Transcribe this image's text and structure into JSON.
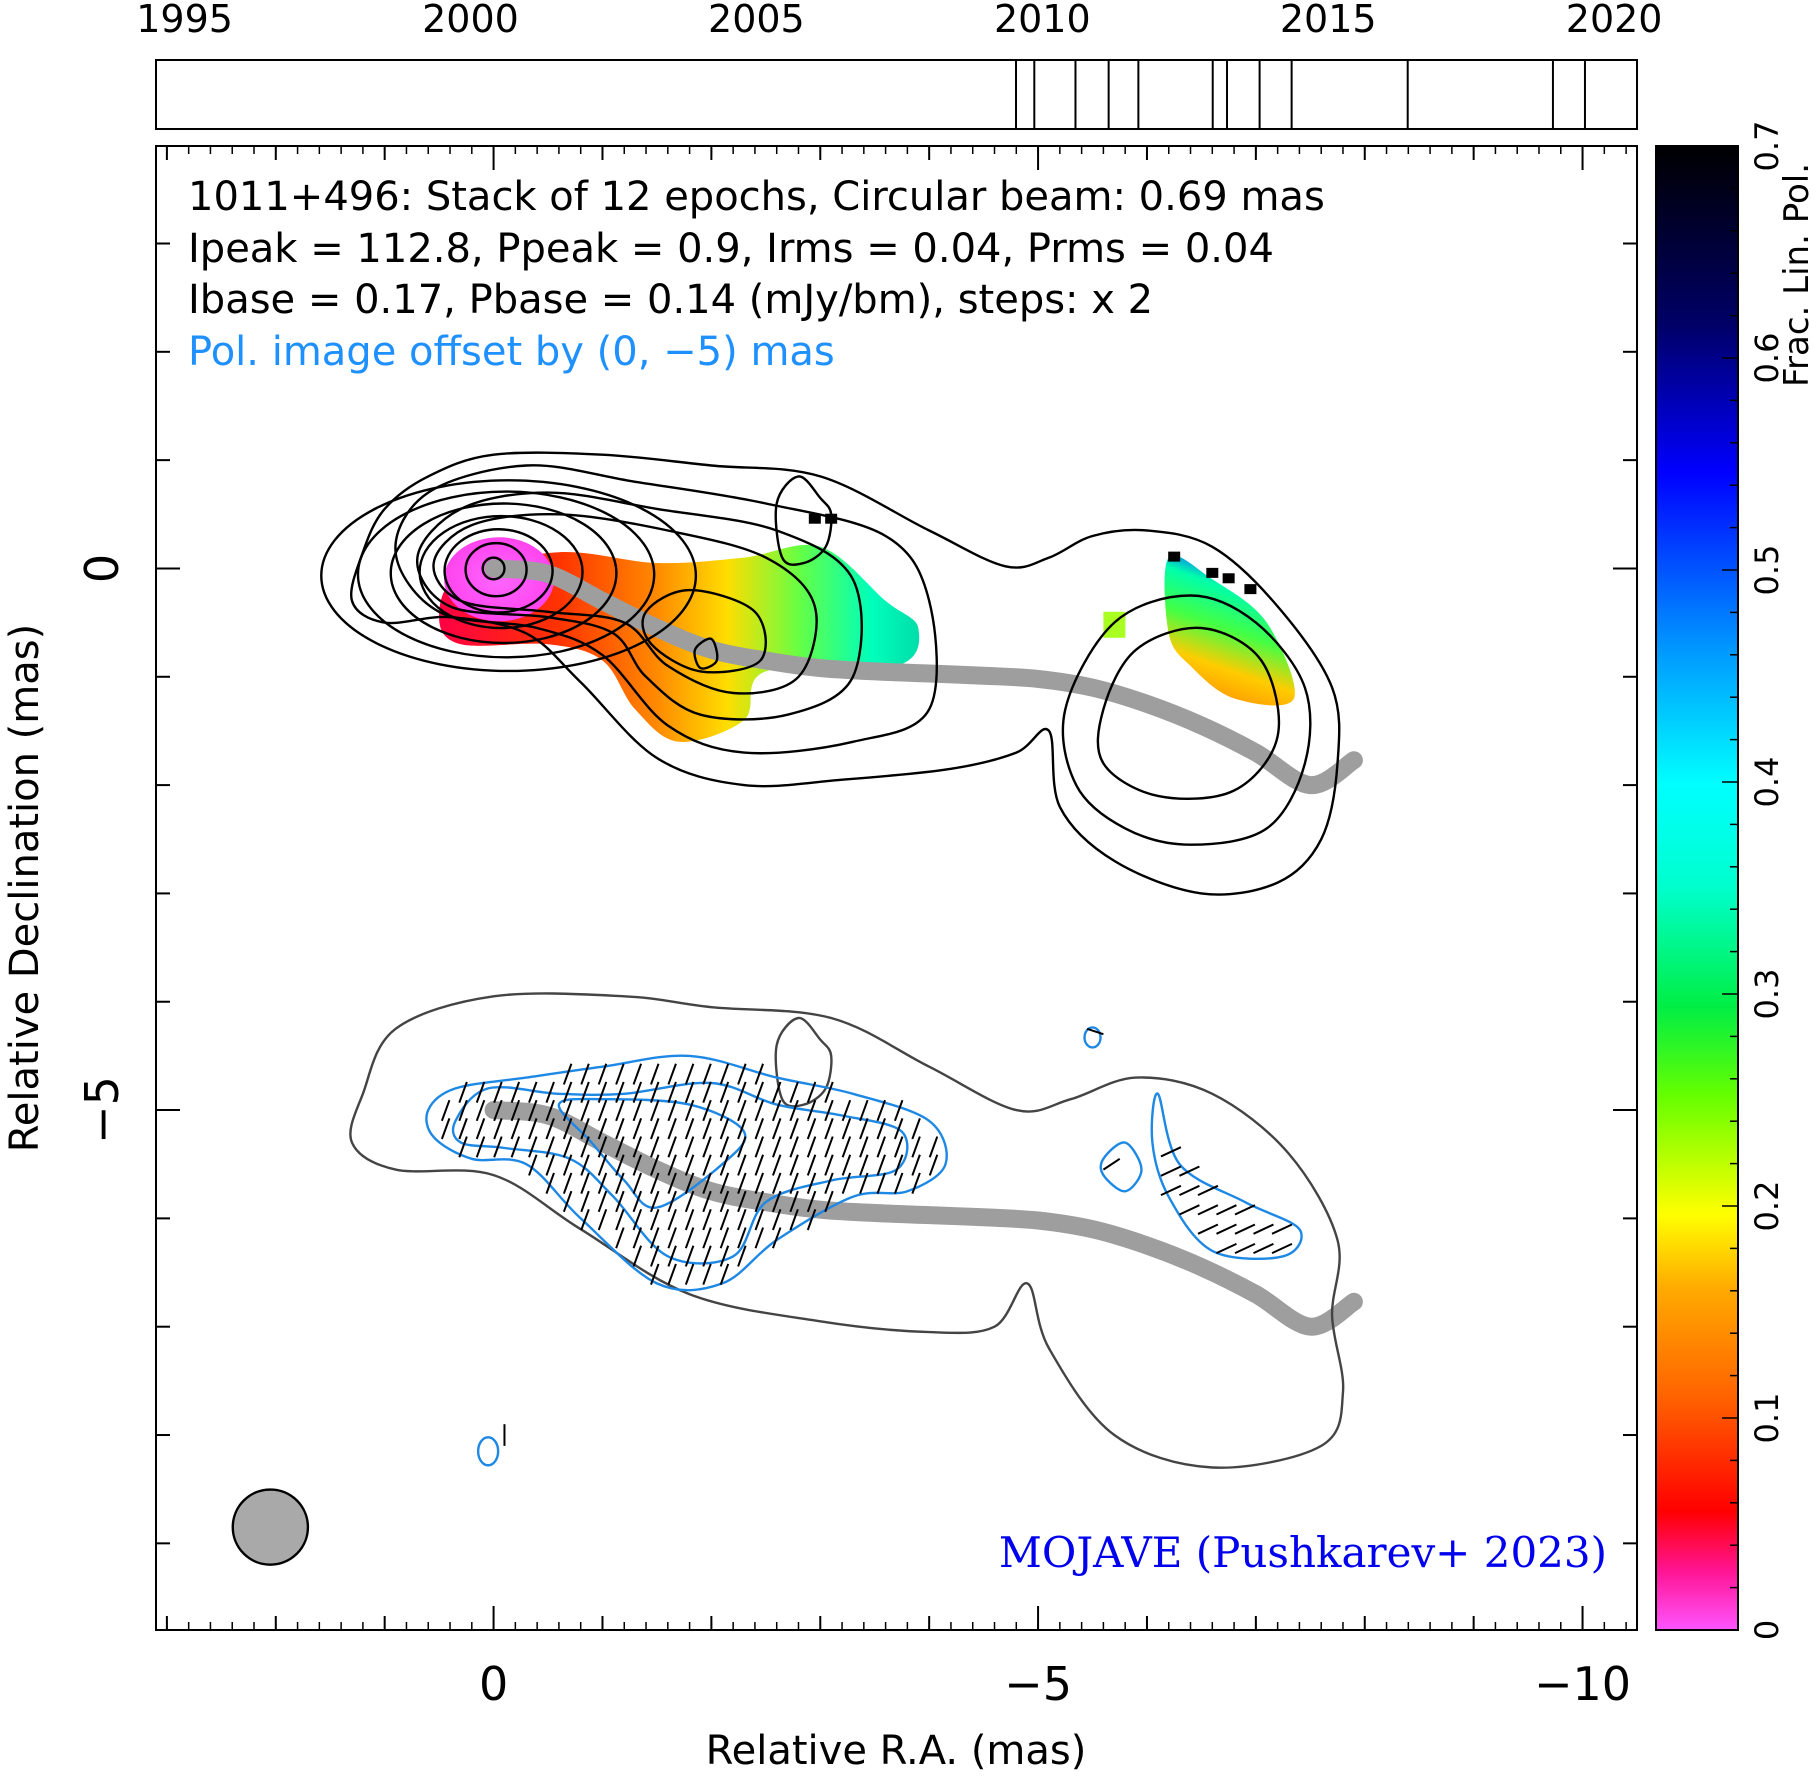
{
  "chart_data": {
    "type": "contour map",
    "source": "1011+496",
    "annotation_lines": [
      "1011+496: Stack of 12 epochs, Circular beam: 0.69 mas",
      "Ipeak = 112.8, Ppeak = 0.9, Irms = 0.04, Prms = 0.04",
      "Ibase = 0.17, Pbase = 0.14 (mJy/bm), steps: x 2"
    ],
    "offset_note": "Pol. image offset by (0, −5) mas",
    "credit": "MOJAVE (Pushkarev+ 2023)",
    "xlabel": "Relative R.A. (mas)",
    "ylabel": "Relative Declination (mas)",
    "xlim": [
      3.1,
      -10.5
    ],
    "ylim": [
      -9.8,
      3.9
    ],
    "x_ticks": [
      0,
      -5,
      -10
    ],
    "x_tick_labels": [
      "0",
      "−5",
      "−10"
    ],
    "y_ticks": [
      0,
      -5
    ],
    "y_tick_labels": [
      "0",
      "−5"
    ],
    "timeline": {
      "range": [
        1994.5,
        2020.4
      ],
      "tick_labels": [
        "1995",
        "2000",
        "2005",
        "2010",
        "2015",
        "2020"
      ],
      "tick_values": [
        1995,
        2000,
        2005,
        2010,
        2015,
        2020
      ],
      "epochs": [
        2009.54,
        2009.86,
        2010.58,
        2011.16,
        2011.68,
        2012.98,
        2013.23,
        2013.8,
        2014.36,
        2016.39,
        2018.93,
        2019.49
      ]
    },
    "colorbar": {
      "label": "Frac. Lin. Pol.",
      "range": [
        0,
        0.7
      ],
      "tick_labels": [
        "0",
        "0.1",
        "0.2",
        "0.3",
        "0.4",
        "0.5",
        "0.6",
        "0.7"
      ],
      "tick_values": [
        0,
        0.1,
        0.2,
        0.3,
        0.4,
        0.5,
        0.6,
        0.7
      ]
    },
    "beam": {
      "diameter_mas": 0.69,
      "x": 2.05,
      "y": -8.85
    },
    "ridge_line": [
      [
        0,
        0
      ],
      [
        -0.5,
        -0.05
      ],
      [
        -1,
        -0.3
      ],
      [
        -1.5,
        -0.55
      ],
      [
        -2,
        -0.75
      ],
      [
        -2.5,
        -0.85
      ],
      [
        -3,
        -0.92
      ],
      [
        -3.5,
        -0.95
      ],
      [
        -4,
        -0.97
      ],
      [
        -4.5,
        -0.99
      ],
      [
        -5,
        -1.02
      ],
      [
        -5.5,
        -1.1
      ],
      [
        -6,
        -1.25
      ],
      [
        -6.5,
        -1.45
      ],
      [
        -7,
        -1.7
      ],
      [
        -7.5,
        -1.95
      ],
      [
        -7.9,
        -1.72
      ]
    ],
    "total_intensity_contours": [
      [
        [
          -3,
          0.65
        ],
        [
          -2.8,
          0.85
        ],
        [
          -2.6,
          0.6
        ],
        [
          -2.65,
          0.1
        ],
        [
          -2.85,
          0.05
        ],
        [
          -3.05,
          0.2
        ],
        [
          -3.1,
          0.5
        ]
      ],
      [
        [
          1.2,
          0.15
        ],
        [
          1,
          0.55
        ],
        [
          0.6,
          0.85
        ],
        [
          0,
          1.05
        ],
        [
          -1,
          1.05
        ],
        [
          -2,
          0.95
        ],
        [
          -3,
          0.85
        ],
        [
          -4,
          0.35
        ],
        [
          -4.7,
          0.02
        ],
        [
          -5.1,
          0.1
        ],
        [
          -5.5,
          0.3
        ],
        [
          -6,
          0.35
        ],
        [
          -6.6,
          0.2
        ],
        [
          -7.2,
          -0.35
        ],
        [
          -7.7,
          -1.1
        ],
        [
          -7.75,
          -1.8
        ],
        [
          -7.6,
          -2.5
        ],
        [
          -7.2,
          -2.9
        ],
        [
          -6.5,
          -3.0
        ],
        [
          -5.7,
          -2.7
        ],
        [
          -5.2,
          -2.2
        ],
        [
          -5.1,
          -1.5
        ],
        [
          -4.8,
          -1.7
        ],
        [
          -4.2,
          -1.85
        ],
        [
          -3.2,
          -1.95
        ],
        [
          -2.3,
          -2.0
        ],
        [
          -1.5,
          -1.75
        ],
        [
          -0.8,
          -1.05
        ],
        [
          -0.3,
          -0.6
        ],
        [
          0.4,
          -0.45
        ],
        [
          1.0,
          -0.5
        ],
        [
          1.3,
          -0.3
        ]
      ],
      [
        [
          -5.25,
          -1.3
        ],
        [
          -5.7,
          -0.5
        ],
        [
          -6.4,
          -0.25
        ],
        [
          -7,
          -0.5
        ],
        [
          -7.45,
          -1.1
        ],
        [
          -7.45,
          -1.8
        ],
        [
          -7.1,
          -2.4
        ],
        [
          -6.4,
          -2.55
        ],
        [
          -5.8,
          -2.4
        ],
        [
          -5.35,
          -2.0
        ]
      ],
      [
        [
          -5.6,
          -1.3
        ],
        [
          -5.9,
          -0.75
        ],
        [
          -6.5,
          -0.55
        ],
        [
          -7.05,
          -0.85
        ],
        [
          -7.2,
          -1.55
        ],
        [
          -6.8,
          -2.05
        ],
        [
          -6.1,
          -2.1
        ],
        [
          -5.6,
          -1.8
        ]
      ]
    ],
    "core_contour_radii_mas": [
      0.1,
      0.25,
      0.4,
      0.55,
      0.7,
      0.85,
      1.0
    ],
    "polarized_intensity_contours": [
      [
        [
          0.6,
          -5.0
        ],
        [
          0.35,
          -4.8
        ],
        [
          -0.3,
          -4.7
        ],
        [
          -1,
          -4.6
        ],
        [
          -1.8,
          -4.5
        ],
        [
          -2.6,
          -4.7
        ],
        [
          -3.3,
          -4.85
        ],
        [
          -4,
          -5.1
        ],
        [
          -4.15,
          -5.5
        ],
        [
          -3.8,
          -5.75
        ],
        [
          -3.3,
          -5.8
        ],
        [
          -2.6,
          -6.2
        ],
        [
          -2.1,
          -6.6
        ],
        [
          -1.5,
          -6.6
        ],
        [
          -0.8,
          -6.0
        ],
        [
          -0.3,
          -5.5
        ],
        [
          0.2,
          -5.45
        ],
        [
          0.55,
          -5.25
        ]
      ],
      [
        [
          -6.1,
          -4.85
        ],
        [
          -6.3,
          -5.5
        ],
        [
          -6.9,
          -5.85
        ],
        [
          -7.4,
          -6.1
        ],
        [
          -7.25,
          -6.35
        ],
        [
          -6.6,
          -6.3
        ],
        [
          -6.2,
          -5.8
        ],
        [
          -6.05,
          -5.3
        ]
      ],
      [
        [
          -5.6,
          -5.45
        ],
        [
          -5.8,
          -5.3
        ],
        [
          -5.95,
          -5.55
        ],
        [
          -5.8,
          -5.75
        ],
        [
          -5.6,
          -5.6
        ]
      ]
    ],
    "legend_markers_note": "EVPA ticks over polarized region"
  }
}
